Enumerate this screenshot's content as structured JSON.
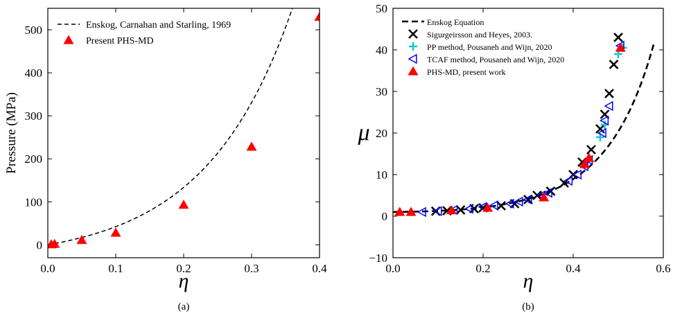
{
  "chart_data": [
    {
      "type": "scatter",
      "caption": "(a)",
      "xlabel": "η",
      "ylabel": "Pressure (MPa)",
      "xlim": [
        0.0,
        0.4
      ],
      "ylim": [
        -30,
        550
      ],
      "xticks": [
        0.0,
        0.1,
        0.2,
        0.3,
        0.4
      ],
      "yticks": [
        0,
        100,
        200,
        300,
        400,
        500
      ],
      "grid": false,
      "legend_position": "top-left",
      "series": [
        {
          "name": "Enskog, Carnahan and Starling, 1969",
          "kind": "dashed-line",
          "color": "#000000",
          "model": "enskog-pressure",
          "x_range": [
            0.0,
            0.4
          ]
        },
        {
          "name": "Present PHS-MD",
          "kind": "triangle-marker",
          "color": "#ff0000",
          "x": [
            0.005,
            0.01,
            0.05,
            0.1,
            0.2,
            0.3,
            0.4
          ],
          "y": [
            1,
            2,
            11,
            28,
            93,
            228,
            530
          ]
        }
      ]
    },
    {
      "type": "scatter",
      "caption": "(b)",
      "xlabel": "η",
      "ylabel": "μ",
      "xlim": [
        0.0,
        0.6
      ],
      "ylim": [
        -10,
        50
      ],
      "xticks": [
        0.0,
        0.2,
        0.4,
        0.6
      ],
      "yticks": [
        -10,
        0,
        10,
        20,
        30,
        40,
        50
      ],
      "grid": false,
      "legend_position": "top-left",
      "series": [
        {
          "name": "Enskog Equation",
          "kind": "dashed-line",
          "color": "#000000",
          "model": "enskog-viscosity",
          "x_range": [
            0.0,
            0.58
          ]
        },
        {
          "name": "Sigurgeirsson and Heyes, 2003.",
          "kind": "x-marker",
          "color": "#000000",
          "x": [
            0.095,
            0.12,
            0.15,
            0.18,
            0.2,
            0.24,
            0.27,
            0.3,
            0.32,
            0.35,
            0.38,
            0.4,
            0.42,
            0.44,
            0.46,
            0.47,
            0.48,
            0.49,
            0.5
          ],
          "y": [
            1.2,
            1.3,
            1.5,
            1.8,
            2.0,
            2.5,
            3.0,
            4.0,
            5.0,
            6.0,
            8.0,
            10.0,
            13.0,
            16.0,
            21.0,
            24.5,
            29.5,
            36.5,
            43.0
          ]
        },
        {
          "name": "PP method, Pousaneh and Wijn, 2020",
          "kind": "plus-marker",
          "color": "#1cc4d0",
          "x": [
            0.46,
            0.47,
            0.5,
            0.51
          ],
          "y": [
            19.0,
            22.0,
            39.0,
            40.5
          ]
        },
        {
          "name": "TCAF method, Pousaneh and Wijn, 2020",
          "kind": "left-triangle-marker",
          "color": "#0000ff",
          "x": [
            0.065,
            0.1,
            0.135,
            0.17,
            0.2,
            0.225,
            0.26,
            0.28,
            0.3,
            0.33,
            0.345,
            0.39,
            0.41,
            0.425,
            0.435,
            0.465,
            0.47,
            0.48,
            0.505
          ],
          "y": [
            1.0,
            1.2,
            1.5,
            1.8,
            2.2,
            2.6,
            3.0,
            3.5,
            4.0,
            5.0,
            5.6,
            8.5,
            10.0,
            12.0,
            13.5,
            20.0,
            23.0,
            26.5,
            41.0
          ]
        },
        {
          "name": "PHS-MD, present work",
          "kind": "triangle-marker",
          "color": "#ff0000",
          "x": [
            0.015,
            0.04,
            0.13,
            0.21,
            0.335,
            0.425,
            0.435,
            0.505
          ],
          "y": [
            1.0,
            1.0,
            1.4,
            2.0,
            4.5,
            12.5,
            14.0,
            40.5
          ]
        }
      ]
    }
  ]
}
